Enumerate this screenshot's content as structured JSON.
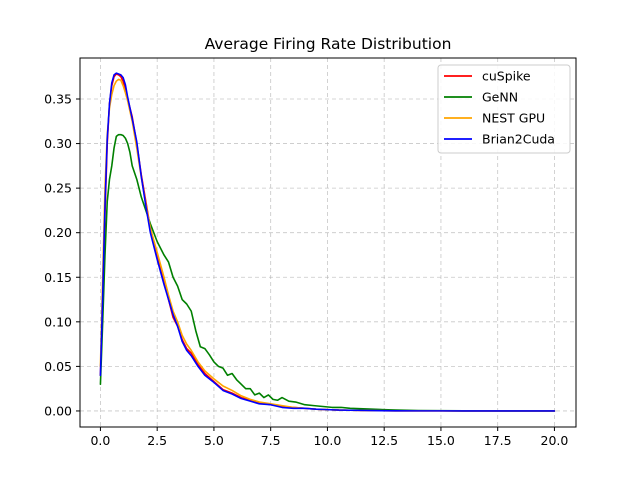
{
  "chart_data": {
    "type": "line",
    "title": "Average Firing Rate Distribution",
    "xlabel": "",
    "ylabel": "",
    "xlim": [
      -0.9,
      20.95
    ],
    "ylim": [
      -0.018,
      0.396
    ],
    "xticks": [
      0.0,
      2.5,
      5.0,
      7.5,
      10.0,
      12.5,
      15.0,
      17.5,
      20.0
    ],
    "xtick_labels": [
      "0.0",
      "2.5",
      "5.0",
      "7.5",
      "10.0",
      "12.5",
      "15.0",
      "17.5",
      "20.0"
    ],
    "yticks": [
      0.0,
      0.05,
      0.1,
      0.15,
      0.2,
      0.25,
      0.3,
      0.35
    ],
    "ytick_labels": [
      "0.00",
      "0.05",
      "0.10",
      "0.15",
      "0.20",
      "0.25",
      "0.30",
      "0.35"
    ],
    "grid": true,
    "legend_position": "top-right",
    "series": [
      {
        "name": "cuSpike",
        "color": "#ff0000",
        "x": [
          0.0,
          0.1,
          0.2,
          0.3,
          0.4,
          0.5,
          0.6,
          0.7,
          0.8,
          0.9,
          1.0,
          1.1,
          1.2,
          1.4,
          1.6,
          1.8,
          2.0,
          2.2,
          2.5,
          2.8,
          3.0,
          3.2,
          3.4,
          3.6,
          3.8,
          4.0,
          4.3,
          4.6,
          5.0,
          5.4,
          5.8,
          6.2,
          6.6,
          7.0,
          7.5,
          8.0,
          8.5,
          9.0,
          9.5,
          10.0,
          10.5,
          11.0,
          12.0,
          13.0,
          14.0,
          15.0,
          16.0,
          17.0,
          18.0,
          19.0,
          20.0
        ],
        "values": [
          0.04,
          0.12,
          0.22,
          0.3,
          0.345,
          0.365,
          0.375,
          0.378,
          0.377,
          0.375,
          0.37,
          0.36,
          0.35,
          0.33,
          0.3,
          0.265,
          0.235,
          0.205,
          0.175,
          0.145,
          0.125,
          0.105,
          0.095,
          0.08,
          0.07,
          0.065,
          0.052,
          0.042,
          0.033,
          0.024,
          0.02,
          0.015,
          0.012,
          0.009,
          0.007,
          0.005,
          0.004,
          0.003,
          0.002,
          0.0015,
          0.001,
          0.0008,
          0.0004,
          0.0002,
          0.0001,
          0.0001,
          0.0,
          0.0,
          0.0,
          0.0,
          0.0
        ]
      },
      {
        "name": "GeNN",
        "color": "#008000",
        "x": [
          0.0,
          0.1,
          0.2,
          0.3,
          0.4,
          0.5,
          0.6,
          0.7,
          0.8,
          0.9,
          1.0,
          1.1,
          1.2,
          1.3,
          1.4,
          1.6,
          1.8,
          2.0,
          2.2,
          2.5,
          2.8,
          3.0,
          3.2,
          3.4,
          3.6,
          3.8,
          4.0,
          4.2,
          4.4,
          4.6,
          4.8,
          5.0,
          5.2,
          5.4,
          5.6,
          5.8,
          6.0,
          6.2,
          6.4,
          6.6,
          6.8,
          7.0,
          7.2,
          7.4,
          7.6,
          7.8,
          8.0,
          8.3,
          8.6,
          9.0,
          9.4,
          9.8,
          10.2,
          10.6,
          11.0,
          12.0,
          13.0,
          14.0,
          15.0,
          16.0,
          17.0,
          18.0,
          19.0,
          20.0
        ],
        "values": [
          0.03,
          0.1,
          0.175,
          0.235,
          0.26,
          0.275,
          0.295,
          0.308,
          0.31,
          0.31,
          0.309,
          0.306,
          0.3,
          0.29,
          0.275,
          0.26,
          0.24,
          0.225,
          0.21,
          0.19,
          0.175,
          0.167,
          0.15,
          0.14,
          0.125,
          0.12,
          0.112,
          0.09,
          0.072,
          0.07,
          0.063,
          0.055,
          0.05,
          0.048,
          0.04,
          0.042,
          0.035,
          0.03,
          0.025,
          0.025,
          0.018,
          0.02,
          0.015,
          0.018,
          0.013,
          0.012,
          0.015,
          0.011,
          0.01,
          0.007,
          0.006,
          0.005,
          0.004,
          0.004,
          0.003,
          0.002,
          0.001,
          0.0005,
          0.0003,
          0.0002,
          0.0001,
          0.0,
          0.0,
          0.0
        ]
      },
      {
        "name": "NEST GPU",
        "color": "#ffa500",
        "x": [
          0.0,
          0.1,
          0.2,
          0.3,
          0.4,
          0.5,
          0.6,
          0.7,
          0.8,
          0.9,
          1.0,
          1.1,
          1.2,
          1.4,
          1.6,
          1.8,
          2.0,
          2.2,
          2.5,
          2.8,
          3.0,
          3.2,
          3.4,
          3.6,
          3.8,
          4.0,
          4.3,
          4.6,
          5.0,
          5.4,
          5.8,
          6.2,
          6.6,
          7.0,
          7.5,
          8.0,
          8.5,
          9.0,
          9.5,
          10.0,
          10.5,
          11.0,
          12.0,
          13.0,
          14.0,
          15.0,
          16.0,
          17.0,
          18.0,
          19.0,
          20.0
        ],
        "values": [
          0.05,
          0.15,
          0.25,
          0.31,
          0.34,
          0.355,
          0.365,
          0.37,
          0.372,
          0.371,
          0.365,
          0.357,
          0.348,
          0.325,
          0.295,
          0.262,
          0.232,
          0.205,
          0.178,
          0.15,
          0.13,
          0.112,
          0.1,
          0.085,
          0.075,
          0.068,
          0.055,
          0.045,
          0.036,
          0.028,
          0.023,
          0.017,
          0.013,
          0.01,
          0.008,
          0.006,
          0.004,
          0.003,
          0.002,
          0.0015,
          0.001,
          0.0008,
          0.0004,
          0.0002,
          0.0001,
          0.0001,
          0.0,
          0.0,
          0.0,
          0.0,
          0.0
        ]
      },
      {
        "name": "Brian2Cuda",
        "color": "#0000ff",
        "x": [
          0.0,
          0.1,
          0.2,
          0.3,
          0.4,
          0.5,
          0.6,
          0.7,
          0.8,
          0.9,
          1.0,
          1.1,
          1.2,
          1.4,
          1.6,
          1.8,
          2.0,
          2.2,
          2.5,
          2.8,
          3.0,
          3.2,
          3.4,
          3.6,
          3.8,
          4.0,
          4.3,
          4.6,
          5.0,
          5.4,
          5.8,
          6.2,
          6.6,
          7.0,
          7.5,
          8.0,
          8.5,
          9.0,
          9.5,
          10.0,
          10.5,
          11.0,
          12.0,
          13.0,
          14.0,
          15.0,
          16.0,
          17.0,
          18.0,
          19.0,
          20.0
        ],
        "values": [
          0.04,
          0.13,
          0.23,
          0.305,
          0.345,
          0.368,
          0.377,
          0.379,
          0.378,
          0.377,
          0.374,
          0.366,
          0.352,
          0.328,
          0.302,
          0.263,
          0.23,
          0.2,
          0.17,
          0.142,
          0.125,
          0.108,
          0.095,
          0.078,
          0.068,
          0.062,
          0.05,
          0.04,
          0.032,
          0.023,
          0.019,
          0.014,
          0.011,
          0.008,
          0.007,
          0.004,
          0.003,
          0.003,
          0.002,
          0.0015,
          0.001,
          0.0008,
          0.0004,
          0.0002,
          0.0001,
          0.0001,
          0.0,
          0.0,
          0.0,
          0.0,
          0.0
        ]
      }
    ]
  }
}
